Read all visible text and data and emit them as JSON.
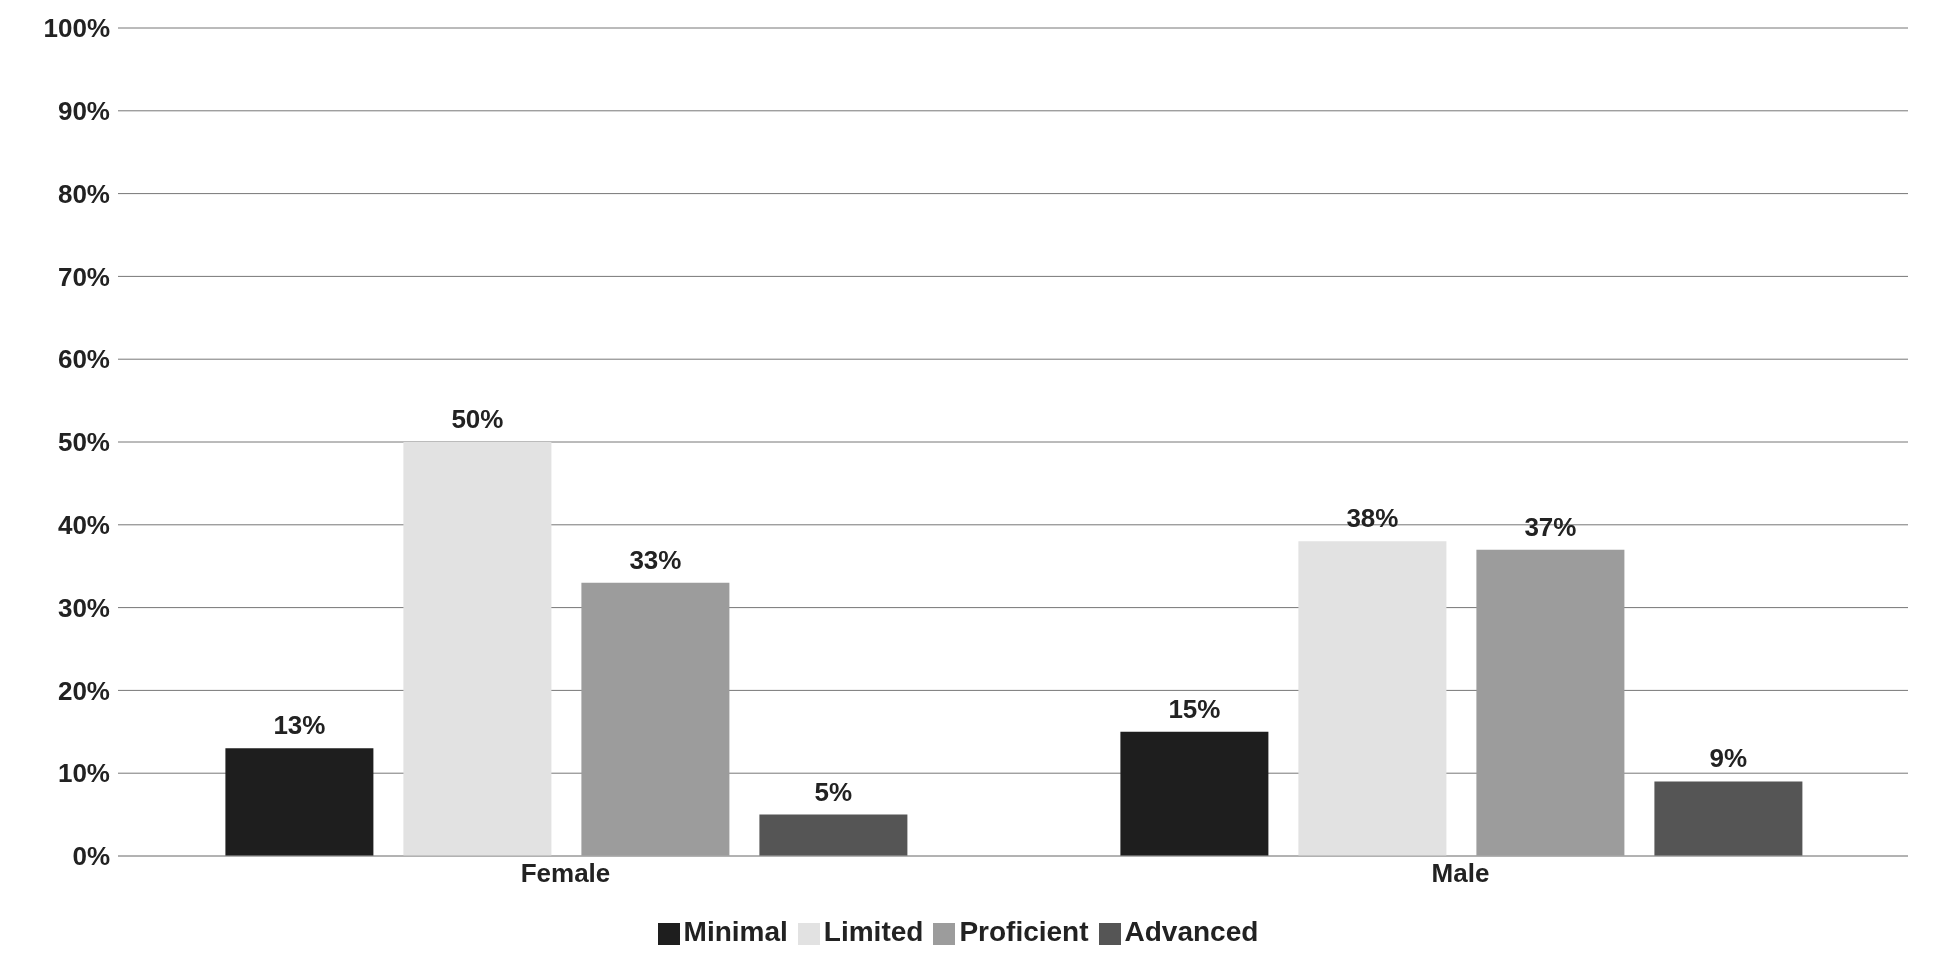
{
  "chart_data": {
    "type": "bar",
    "categories": [
      "Female",
      "Male"
    ],
    "series": [
      {
        "name": "Minimal",
        "color": "#1e1e1e",
        "values": [
          13,
          15
        ],
        "value_labels": [
          "13%",
          "15%"
        ]
      },
      {
        "name": "Limited",
        "color": "#e2e2e2",
        "values": [
          50,
          38
        ],
        "value_labels": [
          "50%",
          "38%"
        ]
      },
      {
        "name": "Proficient",
        "color": "#9c9c9c",
        "values": [
          33,
          37
        ],
        "value_labels": [
          "33%",
          "37%"
        ]
      },
      {
        "name": "Advanced",
        "color": "#555555",
        "values": [
          5,
          9
        ],
        "value_labels": [
          "5%",
          "9%"
        ]
      }
    ],
    "ylim": [
      0,
      100
    ],
    "yticks": [
      {
        "value": 0,
        "label": "0%"
      },
      {
        "value": 10,
        "label": "10%"
      },
      {
        "value": 20,
        "label": "20%"
      },
      {
        "value": 30,
        "label": "30%"
      },
      {
        "value": 40,
        "label": "40%"
      },
      {
        "value": 50,
        "label": "50%"
      },
      {
        "value": 60,
        "label": "60%"
      },
      {
        "value": 70,
        "label": "70%"
      },
      {
        "value": 80,
        "label": "80%"
      },
      {
        "value": 90,
        "label": "90%"
      },
      {
        "value": 100,
        "label": "100%"
      }
    ],
    "grid": "y",
    "legend": "bottom"
  }
}
